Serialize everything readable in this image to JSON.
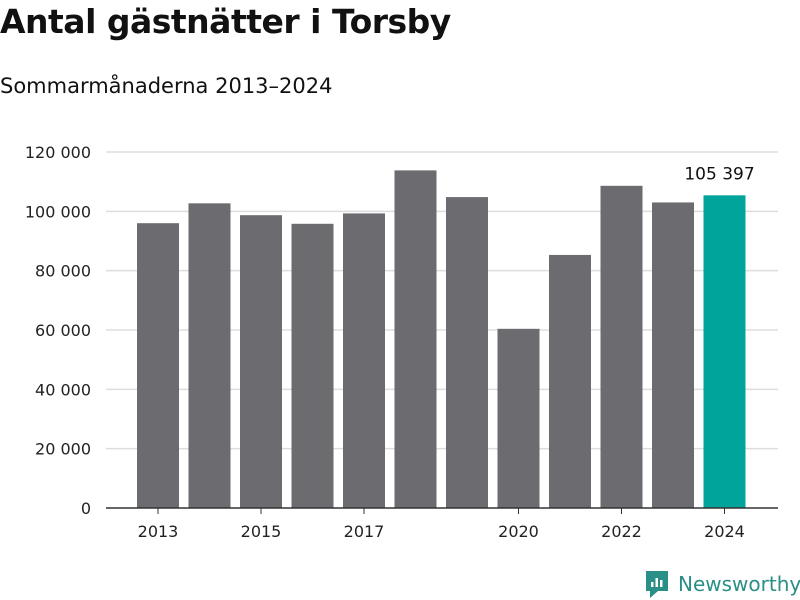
{
  "title": "Antal gästnätter i Torsby",
  "subtitle": "Sommarmånaderna 2013–2024",
  "brand": {
    "name": "Newsworthy",
    "icon": "newsworthy-logo-icon",
    "color": "#2a8f86"
  },
  "colors": {
    "bar": "#6b6b70",
    "highlight": "#00a49a",
    "gridline": "#dddddd",
    "axis": "#333333"
  },
  "chart_data": {
    "type": "bar",
    "categories": [
      "2013",
      "2014",
      "2015",
      "2016",
      "2017",
      "2018",
      "2019",
      "2020",
      "2021",
      "2022",
      "2023",
      "2024"
    ],
    "x_tick_labels": [
      "2013",
      "",
      "2015",
      "",
      "2017",
      "",
      "",
      "2020",
      "",
      "2022",
      "",
      "2024"
    ],
    "values": [
      96000,
      102700,
      98700,
      95800,
      99300,
      113800,
      104800,
      60400,
      85300,
      108600,
      103000,
      105397
    ],
    "highlight_index": 11,
    "data_labels": [
      {
        "index": 11,
        "text": "105 397"
      }
    ],
    "ylim": [
      0,
      120000
    ],
    "y_ticks": [
      0,
      20000,
      40000,
      60000,
      80000,
      100000,
      120000
    ],
    "y_tick_labels": [
      "0",
      "20 000",
      "40 000",
      "60 000",
      "80 000",
      "100 000",
      "120 000"
    ],
    "grid": true,
    "xlabel": "",
    "ylabel": ""
  }
}
